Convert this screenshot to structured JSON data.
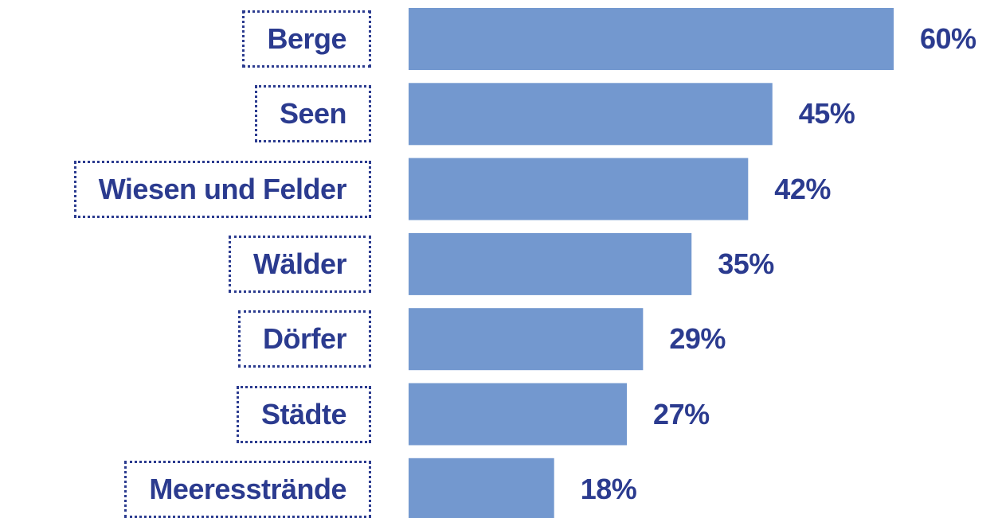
{
  "chart_data": {
    "type": "bar",
    "orientation": "horizontal",
    "categories": [
      "Berge",
      "Seen",
      "Wiesen und Felder",
      "Wälder",
      "Dörfer",
      "Städte",
      "Meeresstrände"
    ],
    "values": [
      60,
      45,
      42,
      35,
      29,
      27,
      18
    ],
    "value_labels": [
      "60%",
      "45%",
      "42%",
      "35%",
      "29%",
      "27%",
      "18%"
    ],
    "color": "#7398cf"
  }
}
